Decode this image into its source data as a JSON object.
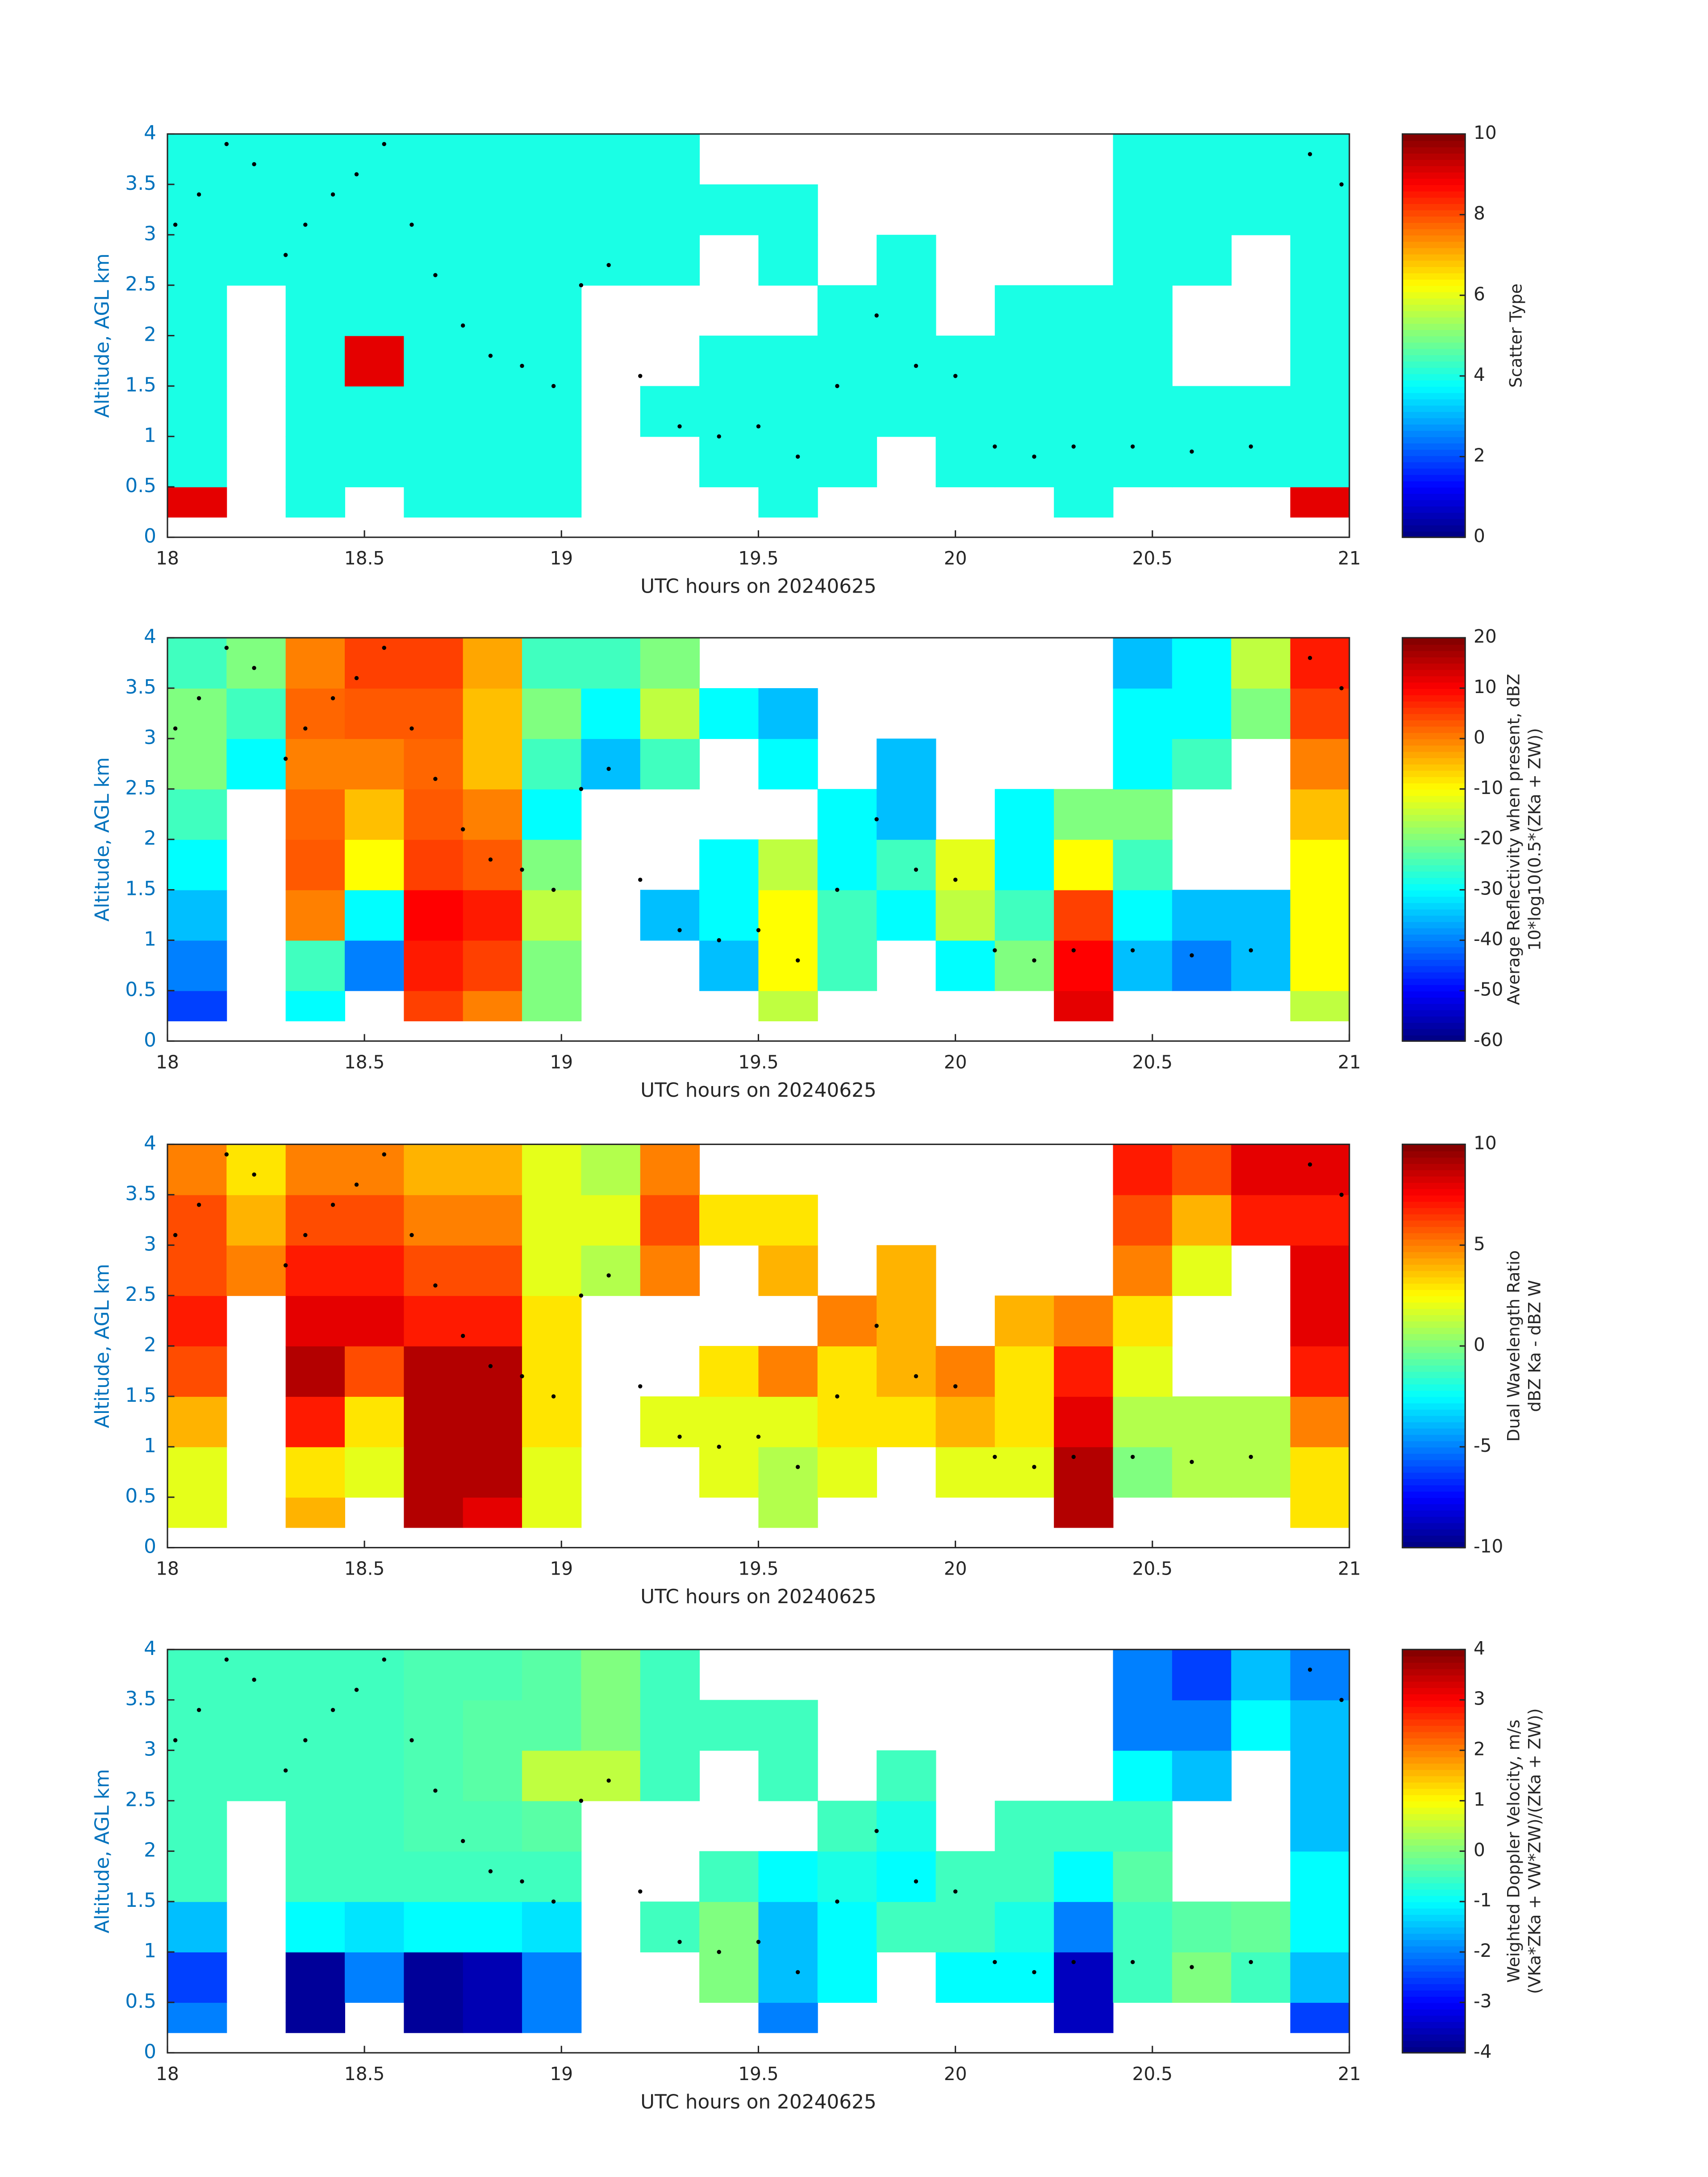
{
  "chart_data": [
    {
      "type": "heatmap",
      "colormap": "jet",
      "xlabel": "UTC hours on 20240625",
      "ylabel": "Altitude, AGL km",
      "colorbar_label": [
        "Scatter Type"
      ],
      "xlim": [
        18,
        21
      ],
      "ylim": [
        0,
        4
      ],
      "xticks": [
        18,
        18.5,
        19,
        19.5,
        20,
        20.5,
        21
      ],
      "yticks": [
        0,
        0.5,
        1,
        1.5,
        2,
        2.5,
        3,
        3.5,
        4
      ],
      "clim": [
        0,
        10
      ],
      "cticks": [
        0,
        2,
        4,
        6,
        8,
        10
      ],
      "x": [
        18,
        18.15,
        18.3,
        18.45,
        18.6,
        18.75,
        18.9,
        19.05,
        19.2,
        19.35,
        19.5,
        19.65,
        19.8,
        19.95,
        20.1,
        20.25,
        20.4,
        20.55,
        20.7,
        20.85,
        21
      ],
      "y": [
        0.2,
        0.5,
        1,
        1.5,
        2,
        2.5,
        3,
        3.5,
        4
      ],
      "z": [
        [
          9,
          null,
          4,
          null,
          4,
          4,
          4,
          null,
          null,
          null,
          4,
          null,
          null,
          null,
          null,
          4,
          null,
          null,
          null,
          9
        ],
        [
          4,
          null,
          4,
          4,
          4,
          4,
          4,
          null,
          null,
          4,
          4,
          4,
          null,
          4,
          4,
          4,
          4,
          4,
          4,
          4
        ],
        [
          4,
          null,
          4,
          4,
          4,
          4,
          4,
          null,
          4,
          4,
          4,
          4,
          4,
          4,
          4,
          4,
          4,
          4,
          4,
          4
        ],
        [
          4,
          null,
          4,
          9,
          4,
          4,
          4,
          null,
          null,
          4,
          4,
          4,
          4,
          4,
          4,
          4,
          4,
          null,
          null,
          4
        ],
        [
          4,
          null,
          4,
          4,
          4,
          4,
          4,
          null,
          null,
          null,
          null,
          4,
          4,
          null,
          4,
          4,
          4,
          null,
          null,
          4
        ],
        [
          4,
          4,
          4,
          4,
          4,
          4,
          4,
          4,
          4,
          null,
          4,
          null,
          4,
          null,
          null,
          null,
          4,
          4,
          null,
          4
        ],
        [
          4,
          4,
          4,
          4,
          4,
          4,
          4,
          4,
          4,
          4,
          4,
          null,
          null,
          null,
          null,
          null,
          4,
          4,
          4,
          4
        ],
        [
          4,
          4,
          4,
          4,
          4,
          4,
          4,
          4,
          4,
          null,
          null,
          null,
          null,
          null,
          null,
          null,
          4,
          4,
          4,
          4
        ]
      ],
      "points": {
        "color": "#000000",
        "x": [
          18.02,
          18.08,
          18.15,
          18.22,
          18.3,
          18.35,
          18.42,
          18.48,
          18.55,
          18.62,
          18.68,
          18.75,
          18.82,
          18.9,
          18.98,
          19.05,
          19.12,
          19.2,
          19.3,
          19.4,
          19.5,
          19.6,
          19.7,
          19.8,
          19.9,
          20.0,
          20.1,
          20.2,
          20.3,
          20.45,
          20.6,
          20.75,
          20.9,
          20.98
        ],
        "y": [
          3.1,
          3.4,
          3.9,
          3.7,
          2.8,
          3.1,
          3.4,
          3.6,
          3.9,
          3.1,
          2.6,
          2.1,
          1.8,
          1.7,
          1.5,
          2.5,
          2.7,
          1.6,
          1.1,
          1.0,
          1.1,
          0.8,
          1.5,
          2.2,
          1.7,
          1.6,
          0.9,
          0.8,
          0.9,
          0.9,
          0.85,
          0.9,
          3.8,
          3.5
        ]
      }
    },
    {
      "type": "heatmap",
      "colormap": "jet",
      "xlabel": "UTC hours on 20240625",
      "ylabel": "Altitude, AGL km",
      "colorbar_label": [
        "Average Reflectivity when present, dBZ",
        "10*log10(0.5*(ZKa + ZW))"
      ],
      "xlim": [
        18,
        21
      ],
      "ylim": [
        0,
        4
      ],
      "xticks": [
        18,
        18.5,
        19,
        19.5,
        20,
        20.5,
        21
      ],
      "yticks": [
        0,
        0.5,
        1,
        1.5,
        2,
        2.5,
        3,
        3.5,
        4
      ],
      "clim": [
        -60,
        20
      ],
      "cticks": [
        -60,
        -50,
        -40,
        -30,
        -20,
        -10,
        0,
        10,
        20
      ],
      "x": [
        18,
        18.15,
        18.3,
        18.45,
        18.6,
        18.75,
        18.9,
        19.05,
        19.2,
        19.35,
        19.5,
        19.65,
        19.8,
        19.95,
        20.1,
        20.25,
        20.4,
        20.55,
        20.7,
        20.85,
        21
      ],
      "y": [
        0.2,
        0.5,
        1,
        1.5,
        2,
        2.5,
        3,
        3.5,
        4
      ],
      "z": [
        [
          -45,
          null,
          -30,
          null,
          5,
          0,
          -20,
          null,
          null,
          null,
          -15,
          null,
          null,
          null,
          null,
          12,
          null,
          null,
          null,
          -15
        ],
        [
          -40,
          null,
          -25,
          -40,
          8,
          5,
          -20,
          null,
          null,
          -35,
          -10,
          -25,
          null,
          -30,
          -20,
          10,
          -35,
          -40,
          -35,
          -10
        ],
        [
          -35,
          null,
          0,
          -30,
          10,
          8,
          -15,
          null,
          -35,
          -30,
          -10,
          -25,
          -30,
          -15,
          -25,
          5,
          -30,
          -35,
          -35,
          -10
        ],
        [
          -30,
          null,
          3,
          -10,
          5,
          3,
          -20,
          null,
          null,
          -30,
          -15,
          -30,
          -25,
          -12,
          -30,
          -10,
          -25,
          null,
          null,
          -10
        ],
        [
          -25,
          null,
          2,
          -5,
          3,
          0,
          -30,
          null,
          null,
          null,
          null,
          -30,
          -35,
          null,
          -30,
          -20,
          -20,
          null,
          null,
          -5
        ],
        [
          -20,
          -30,
          0,
          0,
          2,
          -5,
          -25,
          -35,
          -25,
          null,
          -30,
          null,
          -35,
          null,
          null,
          null,
          -30,
          -25,
          null,
          0
        ],
        [
          -20,
          -25,
          2,
          3,
          3,
          -5,
          -20,
          -30,
          -15,
          -30,
          -35,
          null,
          null,
          null,
          null,
          null,
          -30,
          -30,
          -20,
          5
        ],
        [
          -25,
          -20,
          0,
          5,
          5,
          -3,
          -25,
          -25,
          -20,
          null,
          null,
          null,
          null,
          null,
          null,
          null,
          -35,
          -30,
          -15,
          8
        ]
      ],
      "points": {
        "color": "#000000",
        "x": [
          18.02,
          18.08,
          18.15,
          18.22,
          18.3,
          18.35,
          18.42,
          18.48,
          18.55,
          18.62,
          18.68,
          18.75,
          18.82,
          18.9,
          18.98,
          19.05,
          19.12,
          19.2,
          19.3,
          19.4,
          19.5,
          19.6,
          19.7,
          19.8,
          19.9,
          20.0,
          20.1,
          20.2,
          20.3,
          20.45,
          20.6,
          20.75,
          20.9,
          20.98
        ],
        "y": [
          3.1,
          3.4,
          3.9,
          3.7,
          2.8,
          3.1,
          3.4,
          3.6,
          3.9,
          3.1,
          2.6,
          2.1,
          1.8,
          1.7,
          1.5,
          2.5,
          2.7,
          1.6,
          1.1,
          1.0,
          1.1,
          0.8,
          1.5,
          2.2,
          1.7,
          1.6,
          0.9,
          0.8,
          0.9,
          0.9,
          0.85,
          0.9,
          3.8,
          3.5
        ]
      }
    },
    {
      "type": "heatmap",
      "colormap": "jet",
      "xlabel": "UTC hours on 20240625",
      "ylabel": "Altitude, AGL km",
      "colorbar_label": [
        "Dual Wavelength Ratio",
        "dBZ Ka - dBZ W"
      ],
      "xlim": [
        18,
        21
      ],
      "ylim": [
        0,
        4
      ],
      "xticks": [
        18,
        18.5,
        19,
        19.5,
        20,
        20.5,
        21
      ],
      "yticks": [
        0,
        0.5,
        1,
        1.5,
        2,
        2.5,
        3,
        3.5,
        4
      ],
      "clim": [
        -10,
        10
      ],
      "cticks": [
        -10,
        -5,
        0,
        5,
        10
      ],
      "x": [
        18,
        18.15,
        18.3,
        18.45,
        18.6,
        18.75,
        18.9,
        19.05,
        19.2,
        19.35,
        19.5,
        19.65,
        19.8,
        19.95,
        20.1,
        20.25,
        20.4,
        20.55,
        20.7,
        20.85,
        21
      ],
      "y": [
        0.2,
        0.5,
        1,
        1.5,
        2,
        2.5,
        3,
        3.5,
        4
      ],
      "z": [
        [
          2,
          null,
          4,
          null,
          9,
          8,
          2,
          null,
          null,
          null,
          1,
          null,
          null,
          null,
          null,
          9,
          null,
          null,
          null,
          3
        ],
        [
          2,
          null,
          3,
          2,
          9,
          9,
          2,
          null,
          null,
          2,
          1,
          2,
          null,
          2,
          2,
          9,
          0,
          1,
          1,
          3
        ],
        [
          4,
          null,
          7,
          3,
          9,
          9,
          3,
          null,
          2,
          2,
          2,
          3,
          3,
          4,
          3,
          8,
          1,
          1,
          1,
          5
        ],
        [
          6,
          null,
          9,
          6,
          9,
          9,
          3,
          null,
          null,
          3,
          5,
          3,
          4,
          5,
          3,
          7,
          2,
          null,
          null,
          7
        ],
        [
          7,
          null,
          8,
          8,
          7,
          7,
          3,
          null,
          null,
          null,
          null,
          5,
          4,
          null,
          4,
          5,
          3,
          null,
          null,
          8
        ],
        [
          6,
          5,
          7,
          7,
          6,
          6,
          2,
          1,
          5,
          null,
          4,
          null,
          4,
          null,
          null,
          null,
          5,
          2,
          null,
          8
        ],
        [
          6,
          4,
          6,
          6,
          5,
          5,
          2,
          2,
          6,
          3,
          3,
          null,
          null,
          null,
          null,
          null,
          6,
          4,
          7,
          7
        ],
        [
          5,
          3,
          5,
          5,
          4,
          4,
          2,
          1,
          5,
          null,
          null,
          null,
          null,
          null,
          null,
          null,
          7,
          6,
          8,
          8
        ]
      ],
      "points": {
        "color": "#000000",
        "x": [
          18.02,
          18.08,
          18.15,
          18.22,
          18.3,
          18.35,
          18.42,
          18.48,
          18.55,
          18.62,
          18.68,
          18.75,
          18.82,
          18.9,
          18.98,
          19.05,
          19.12,
          19.2,
          19.3,
          19.4,
          19.5,
          19.6,
          19.7,
          19.8,
          19.9,
          20.0,
          20.1,
          20.2,
          20.3,
          20.45,
          20.6,
          20.75,
          20.9,
          20.98
        ],
        "y": [
          3.1,
          3.4,
          3.9,
          3.7,
          2.8,
          3.1,
          3.4,
          3.6,
          3.9,
          3.1,
          2.6,
          2.1,
          1.8,
          1.7,
          1.5,
          2.5,
          2.7,
          1.6,
          1.1,
          1.0,
          1.1,
          0.8,
          1.5,
          2.2,
          1.7,
          1.6,
          0.9,
          0.8,
          0.9,
          0.9,
          0.85,
          0.9,
          3.8,
          3.5
        ]
      }
    },
    {
      "type": "heatmap",
      "colormap": "jet",
      "xlabel": "UTC hours on 20240625",
      "ylabel": "Altitude, AGL km",
      "colorbar_label": [
        "Weighted Doppler Velocity, m/s",
        "(VKa*ZKa + VW*ZW)/(ZKa + ZW))"
      ],
      "xlim": [
        18,
        21
      ],
      "ylim": [
        0,
        4
      ],
      "xticks": [
        18,
        18.5,
        19,
        19.5,
        20,
        20.5,
        21
      ],
      "yticks": [
        0,
        0.5,
        1,
        1.5,
        2,
        2.5,
        3,
        3.5,
        4
      ],
      "clim": [
        -4,
        4
      ],
      "cticks": [
        -4,
        -3,
        -2,
        -1,
        0,
        1,
        2,
        3,
        4
      ],
      "x": [
        18,
        18.15,
        18.3,
        18.45,
        18.6,
        18.75,
        18.9,
        19.05,
        19.2,
        19.35,
        19.5,
        19.65,
        19.8,
        19.95,
        20.1,
        20.25,
        20.4,
        20.55,
        20.7,
        20.85,
        21
      ],
      "y": [
        0.2,
        0.5,
        1,
        1.5,
        2,
        2.5,
        3,
        3.5,
        4
      ],
      "z": [
        [
          -2,
          null,
          -3.8,
          null,
          -3.8,
          -3.6,
          -2,
          null,
          null,
          null,
          -2,
          null,
          null,
          null,
          null,
          -3.5,
          null,
          null,
          null,
          -2.5
        ],
        [
          -2.5,
          null,
          -3.8,
          -2,
          -3.8,
          -3.6,
          -2,
          null,
          null,
          0,
          -1.5,
          -1,
          null,
          -1,
          -1,
          -3.5,
          -0.5,
          0,
          -0.5,
          -1.5
        ],
        [
          -1.5,
          null,
          -1,
          -1.2,
          -1,
          -1,
          -1.2,
          null,
          -0.5,
          0,
          -1.5,
          -1,
          -0.5,
          -0.5,
          -0.8,
          -2,
          -0.5,
          -0.3,
          -0.2,
          -1
        ],
        [
          -0.5,
          null,
          -0.5,
          -0.5,
          -0.5,
          -0.5,
          -0.5,
          null,
          null,
          -0.5,
          -1,
          -0.8,
          -1,
          -0.5,
          -0.5,
          -1,
          -0.3,
          null,
          null,
          -1
        ],
        [
          -0.5,
          null,
          -0.5,
          -0.5,
          -0.4,
          -0.4,
          -0.3,
          null,
          null,
          null,
          null,
          -0.5,
          -0.8,
          null,
          -0.5,
          -0.5,
          -0.5,
          null,
          null,
          -1.5
        ],
        [
          -0.5,
          -0.5,
          -0.5,
          -0.5,
          -0.4,
          -0.3,
          0.5,
          0.5,
          -0.5,
          null,
          -0.5,
          null,
          -0.5,
          null,
          null,
          null,
          -1,
          -1.5,
          null,
          -1.5
        ],
        [
          -0.5,
          -0.5,
          -0.5,
          -0.5,
          -0.4,
          -0.3,
          -0.3,
          0,
          -0.5,
          -0.5,
          -0.5,
          null,
          null,
          null,
          null,
          null,
          -2,
          -2,
          -1,
          -1.5
        ],
        [
          -0.5,
          -0.5,
          -0.5,
          -0.5,
          -0.4,
          -0.4,
          -0.3,
          0,
          -0.5,
          null,
          null,
          null,
          null,
          null,
          null,
          null,
          -2,
          -2.5,
          -1.5,
          -2
        ]
      ],
      "points": {
        "color": "#000000",
        "x": [
          18.02,
          18.08,
          18.15,
          18.22,
          18.3,
          18.35,
          18.42,
          18.48,
          18.55,
          18.62,
          18.68,
          18.75,
          18.82,
          18.9,
          18.98,
          19.05,
          19.12,
          19.2,
          19.3,
          19.4,
          19.5,
          19.6,
          19.7,
          19.8,
          19.9,
          20.0,
          20.1,
          20.2,
          20.3,
          20.45,
          20.6,
          20.75,
          20.9,
          20.98
        ],
        "y": [
          3.1,
          3.4,
          3.9,
          3.7,
          2.8,
          3.1,
          3.4,
          3.6,
          3.9,
          3.1,
          2.6,
          2.1,
          1.8,
          1.7,
          1.5,
          2.5,
          2.7,
          1.6,
          1.1,
          1.0,
          1.1,
          0.8,
          1.5,
          2.2,
          1.7,
          1.6,
          0.9,
          0.8,
          0.9,
          0.9,
          0.85,
          0.9,
          3.8,
          3.5
        ]
      }
    }
  ]
}
